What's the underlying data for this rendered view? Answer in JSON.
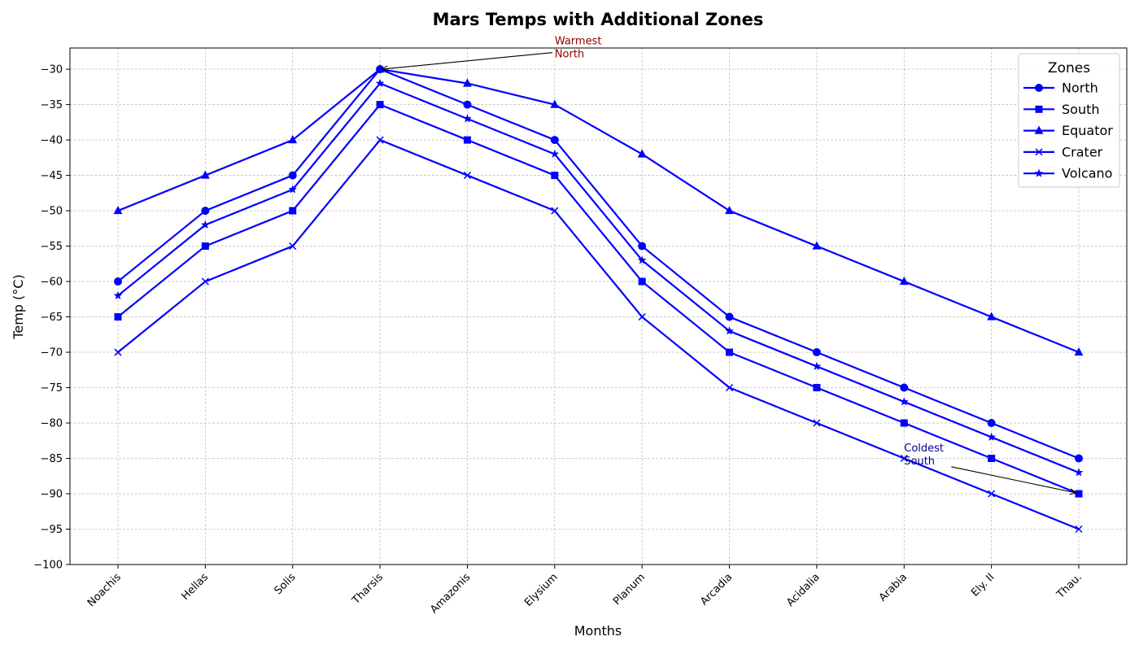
{
  "chart_data": {
    "type": "line",
    "title": "Mars Temps with Additional Zones",
    "xlabel": "Months",
    "ylabel": "Temp (°C)",
    "categories": [
      "Noachis",
      "Hellas",
      "Solis",
      "Tharsis",
      "Amazonis",
      "Elysium",
      "Planum",
      "Arcadia",
      "Acidalia",
      "Arabia",
      "Ely. II",
      "Thau."
    ],
    "ylim": [
      -100,
      -27
    ],
    "yticks": [
      -100,
      -95,
      -90,
      -85,
      -80,
      -75,
      -70,
      -65,
      -60,
      -55,
      -50,
      -45,
      -40,
      -35,
      -30
    ],
    "grid": true,
    "legend": {
      "title": "Zones",
      "placement": "top-right"
    },
    "series": [
      {
        "name": "North",
        "marker": "circle",
        "color": "#0000ff",
        "values": [
          -60,
          -50,
          -45,
          -30,
          -35,
          -40,
          -55,
          -65,
          -70,
          -75,
          -80,
          -85
        ]
      },
      {
        "name": "South",
        "marker": "square",
        "color": "#0000ff",
        "values": [
          -65,
          -55,
          -50,
          -35,
          -40,
          -45,
          -60,
          -70,
          -75,
          -80,
          -85,
          -90
        ]
      },
      {
        "name": "Equator",
        "marker": "triangle",
        "color": "#0000ff",
        "values": [
          -50,
          -45,
          -40,
          -30,
          -32,
          -35,
          -42,
          -50,
          -55,
          -60,
          -65,
          -70
        ]
      },
      {
        "name": "Crater",
        "marker": "x",
        "color": "#0000ff",
        "values": [
          -70,
          -60,
          -55,
          -40,
          -45,
          -50,
          -65,
          -75,
          -80,
          -85,
          -90,
          -95
        ]
      },
      {
        "name": "Volcano",
        "marker": "star",
        "color": "#0000ff",
        "values": [
          -62,
          -52,
          -47,
          -32,
          -37,
          -42,
          -57,
          -67,
          -72,
          -77,
          -82,
          -87
        ]
      }
    ],
    "annotations": [
      {
        "id": "warmest",
        "line1": "Warmest",
        "line2": "North",
        "color": "#8b0000",
        "target_index": 3,
        "target_value": -30,
        "text_index": 5,
        "text_value": -26.5
      },
      {
        "id": "coldest",
        "line1": "Coldest",
        "line2": "South",
        "color": "#00008b",
        "target_index": 11,
        "target_value": -90,
        "text_index": 9,
        "text_value": -84
      }
    ]
  }
}
